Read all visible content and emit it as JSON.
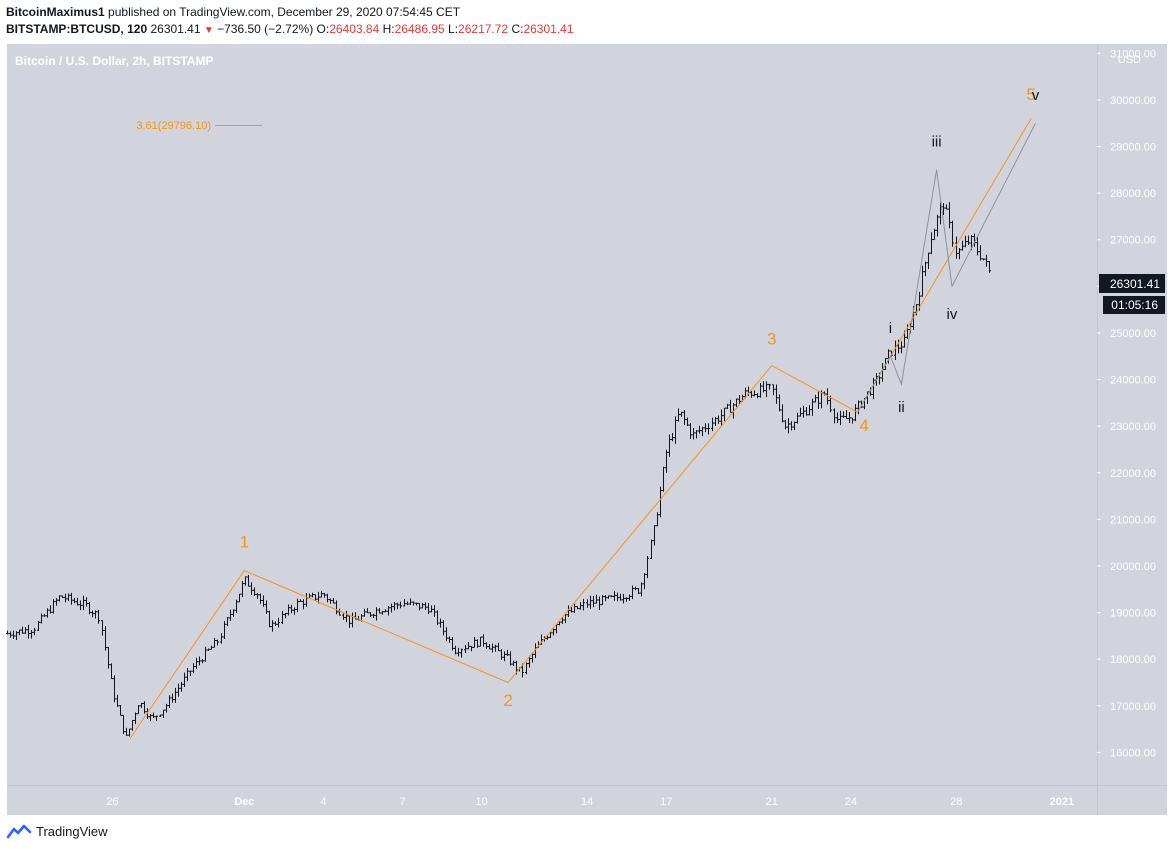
{
  "header": {
    "author": "BitcoinMaximus1",
    "published_text": "published on TradingView.com, December 29, 2020 07:54:45 CET",
    "symbol": "BITSTAMP:BTCUSD, 120",
    "last": "26301.41",
    "change_arrow": "▼",
    "change": "−736.50 (−2.72%)",
    "o_label": "O:",
    "o_value": "26403.84",
    "h_label": "H:",
    "h_value": "26486.95",
    "l_label": "L:",
    "l_value": "26217.72",
    "c_label": "C:",
    "c_value": "26301.41"
  },
  "footer": {
    "brand": "TradingView",
    "logo_icon": "tradingview-logo-icon"
  },
  "colors": {
    "background": "#d1d4dc",
    "candle": "#131722",
    "elliott_major": "#f7931a",
    "elliott_minor": "#8e9299",
    "price_tag": "#131722"
  },
  "chart_data": {
    "type": "candlestick",
    "title": "Bitcoin / U.S. Dollar, 2h, BITSTAMP",
    "currency_label": "USD",
    "y_ticks": [
      "16000.00",
      "17000.00",
      "18000.00",
      "19000.00",
      "20000.00",
      "21000.00",
      "22000.00",
      "23000.00",
      "24000.00",
      "25000.00",
      "26000.00",
      "27000.00",
      "28000.00",
      "29000.00",
      "30000.00",
      "31000.00"
    ],
    "ylim": [
      15300,
      31200
    ],
    "x_ticks": [
      "26",
      "Dec",
      "4",
      "7",
      "10",
      "14",
      "17",
      "21",
      "24",
      "28",
      "2021"
    ],
    "x_tick_dates": [
      "2020-11-26",
      "2020-12-01",
      "2020-12-04",
      "2020-12-07",
      "2020-12-10",
      "2020-12-14",
      "2020-12-17",
      "2020-12-21",
      "2020-12-24",
      "2020-12-28",
      "2021-01-01"
    ],
    "price_tag": {
      "price": 26301.41,
      "value": "26301.41",
      "countdown": "01:05:16"
    },
    "fib_annotation": {
      "label": "3.61(29796.10)",
      "price": 29796.1
    },
    "price_path": [
      [
        "2020-11-22T00:00",
        18550
      ],
      [
        "2020-11-23T00:00",
        18650
      ],
      [
        "2020-11-24T00:00",
        19350
      ],
      [
        "2020-11-25T00:00",
        19150
      ],
      [
        "2020-11-25T12:00",
        18900
      ],
      [
        "2020-11-26T00:00",
        17300
      ],
      [
        "2020-11-26T12:00",
        16300
      ],
      [
        "2020-11-27T00:00",
        17100
      ],
      [
        "2020-11-27T12:00",
        16700
      ],
      [
        "2020-11-28T00:00",
        17000
      ],
      [
        "2020-11-29T00:00",
        17800
      ],
      [
        "2020-11-30T00:00",
        18400
      ],
      [
        "2020-12-01T00:00",
        19700
      ],
      [
        "2020-12-01T12:00",
        19400
      ],
      [
        "2020-12-02T00:00",
        18700
      ],
      [
        "2020-12-03T00:00",
        19200
      ],
      [
        "2020-12-04T00:00",
        19400
      ],
      [
        "2020-12-05T00:00",
        18800
      ],
      [
        "2020-12-06T00:00",
        19050
      ],
      [
        "2020-12-07T00:00",
        19200
      ],
      [
        "2020-12-08T00:00",
        19100
      ],
      [
        "2020-12-09T00:00",
        18200
      ],
      [
        "2020-12-10T00:00",
        18400
      ],
      [
        "2020-12-11T00:00",
        18000
      ],
      [
        "2020-12-11T12:00",
        17700
      ],
      [
        "2020-12-12T00:00",
        18200
      ],
      [
        "2020-12-13T00:00",
        18900
      ],
      [
        "2020-12-14T00:00",
        19200
      ],
      [
        "2020-12-15T00:00",
        19300
      ],
      [
        "2020-12-16T00:00",
        19500
      ],
      [
        "2020-12-16T12:00",
        20700
      ],
      [
        "2020-12-17T00:00",
        22500
      ],
      [
        "2020-12-17T12:00",
        23300
      ],
      [
        "2020-12-18T00:00",
        22800
      ],
      [
        "2020-12-19T00:00",
        23200
      ],
      [
        "2020-12-20T00:00",
        23700
      ],
      [
        "2020-12-21T00:00",
        23800
      ],
      [
        "2020-12-21T12:00",
        23000
      ],
      [
        "2020-12-22T00:00",
        23200
      ],
      [
        "2020-12-23T00:00",
        23700
      ],
      [
        "2020-12-23T12:00",
        23100
      ],
      [
        "2020-12-24T00:00",
        23200
      ],
      [
        "2020-12-25T00:00",
        24000
      ],
      [
        "2020-12-25T12:00",
        24600
      ],
      [
        "2020-12-26T00:00",
        24800
      ],
      [
        "2020-12-26T12:00",
        25700
      ],
      [
        "2020-12-27T00:00",
        27000
      ],
      [
        "2020-12-27T12:00",
        27800
      ],
      [
        "2020-12-28T00:00",
        26700
      ],
      [
        "2020-12-28T12:00",
        27000
      ],
      [
        "2020-12-29T00:00",
        26600
      ],
      [
        "2020-12-29T06:00",
        26301
      ]
    ],
    "wave_major": {
      "name": "Elliott wave (orange)",
      "points": [
        [
          "2020-11-26T16:00",
          16300
        ],
        [
          "2020-12-01T00:00",
          19900
        ],
        [
          "2020-12-11T00:00",
          17500
        ],
        [
          "2020-12-21T00:00",
          24300
        ],
        [
          "2020-12-24T06:00",
          23300
        ],
        [
          "2020-12-30T20:00",
          29600
        ]
      ],
      "labels": [
        {
          "text": "1",
          "date": "2020-12-01T00:00",
          "price": 20400
        },
        {
          "text": "2",
          "date": "2020-12-11T00:00",
          "price": 17000
        },
        {
          "text": "3",
          "date": "2020-12-21T00:00",
          "price": 24750
        },
        {
          "text": "4",
          "date": "2020-12-24T12:00",
          "price": 22900
        },
        {
          "text": "5",
          "date": "2020-12-30T20:00",
          "price": 30000
        }
      ]
    },
    "wave_minor": {
      "name": "Elliott subwave (grey)",
      "points": [
        [
          "2020-12-24T06:00",
          23300
        ],
        [
          "2020-12-25T12:00",
          24500
        ],
        [
          "2020-12-25T22:00",
          23900
        ],
        [
          "2020-12-27T06:00",
          28500
        ],
        [
          "2020-12-27T20:00",
          26000
        ],
        [
          "2020-12-31T00:00",
          29500
        ]
      ],
      "labels": [
        {
          "text": "i",
          "date": "2020-12-25T12:00",
          "price": 25000
        },
        {
          "text": "ii",
          "date": "2020-12-25T22:00",
          "price": 23300
        },
        {
          "text": "iii",
          "date": "2020-12-27T06:00",
          "price": 29000
        },
        {
          "text": "iv",
          "date": "2020-12-27T20:00",
          "price": 25300
        },
        {
          "text": "v",
          "date": "2020-12-31T00:00",
          "price": 30000
        }
      ]
    }
  }
}
